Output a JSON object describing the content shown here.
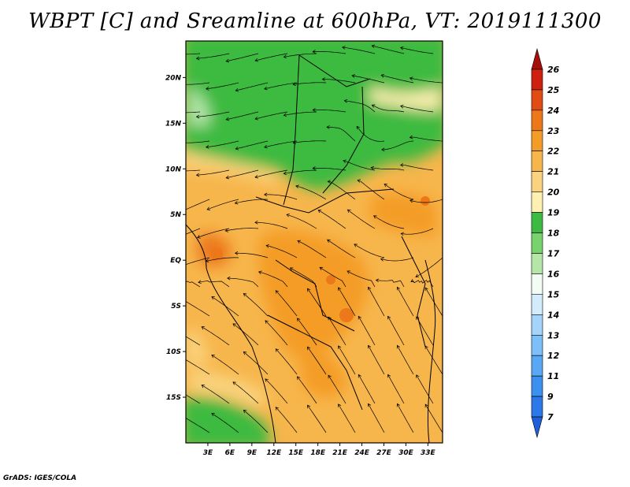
{
  "title": "WBPT [C] and Sreamline at 600hPa, VT: 2019111300",
  "credit": "GrADS: IGES/COLA",
  "chart_data": {
    "type": "heatmap",
    "variable": "WBPT [C]",
    "level": "600hPa",
    "valid_time": "2019111300",
    "xlim": [
      0,
      35
    ],
    "ylim": [
      -20,
      24
    ],
    "x_ticks": [
      {
        "value": 3,
        "label": "3E"
      },
      {
        "value": 6,
        "label": "6E"
      },
      {
        "value": 9,
        "label": "9E"
      },
      {
        "value": 12,
        "label": "12E"
      },
      {
        "value": 15,
        "label": "15E"
      },
      {
        "value": 18,
        "label": "18E"
      },
      {
        "value": 21,
        "label": "21E"
      },
      {
        "value": 24,
        "label": "24E"
      },
      {
        "value": 27,
        "label": "27E"
      },
      {
        "value": 30,
        "label": "30E"
      },
      {
        "value": 33,
        "label": "33E"
      }
    ],
    "y_ticks": [
      {
        "value": 20,
        "label": "20N"
      },
      {
        "value": 15,
        "label": "15N"
      },
      {
        "value": 10,
        "label": "10N"
      },
      {
        "value": 5,
        "label": "5N"
      },
      {
        "value": 0,
        "label": "EQ"
      },
      {
        "value": -5,
        "label": "5S"
      },
      {
        "value": -10,
        "label": "10S"
      },
      {
        "value": -15,
        "label": "15S"
      }
    ],
    "colorbar": {
      "labels": [
        "7",
        "9",
        "11",
        "12",
        "13",
        "14",
        "15",
        "16",
        "17",
        "18",
        "19",
        "20",
        "21",
        "22",
        "23",
        "24",
        "25",
        "26"
      ],
      "colors": [
        "#1f60d8",
        "#2c78e8",
        "#3c91f0",
        "#59a8f5",
        "#7dbff8",
        "#a4d4fa",
        "#d2ecfc",
        "#f2fbf4",
        "#b4e6a8",
        "#78d26e",
        "#3cba41",
        "#fdf0b0",
        "#fad37e",
        "#f7b64c",
        "#f49c28",
        "#ec781a",
        "#e14b14",
        "#cd2010",
        "#a50f0a"
      ]
    },
    "field_regions": [
      {
        "description_level": 17,
        "lat": [
          14,
          24
        ],
        "lon": [
          0,
          35
        ]
      },
      {
        "description_level": 20,
        "lat": [
          -20,
          10
        ],
        "lon": [
          0,
          35
        ]
      },
      {
        "description_level": 22,
        "lat": [
          -12,
          6
        ],
        "lon": [
          15,
          30
        ]
      },
      {
        "description_level": 17,
        "lat": [
          -20,
          -14
        ],
        "lon": [
          0,
          10
        ]
      }
    ]
  }
}
